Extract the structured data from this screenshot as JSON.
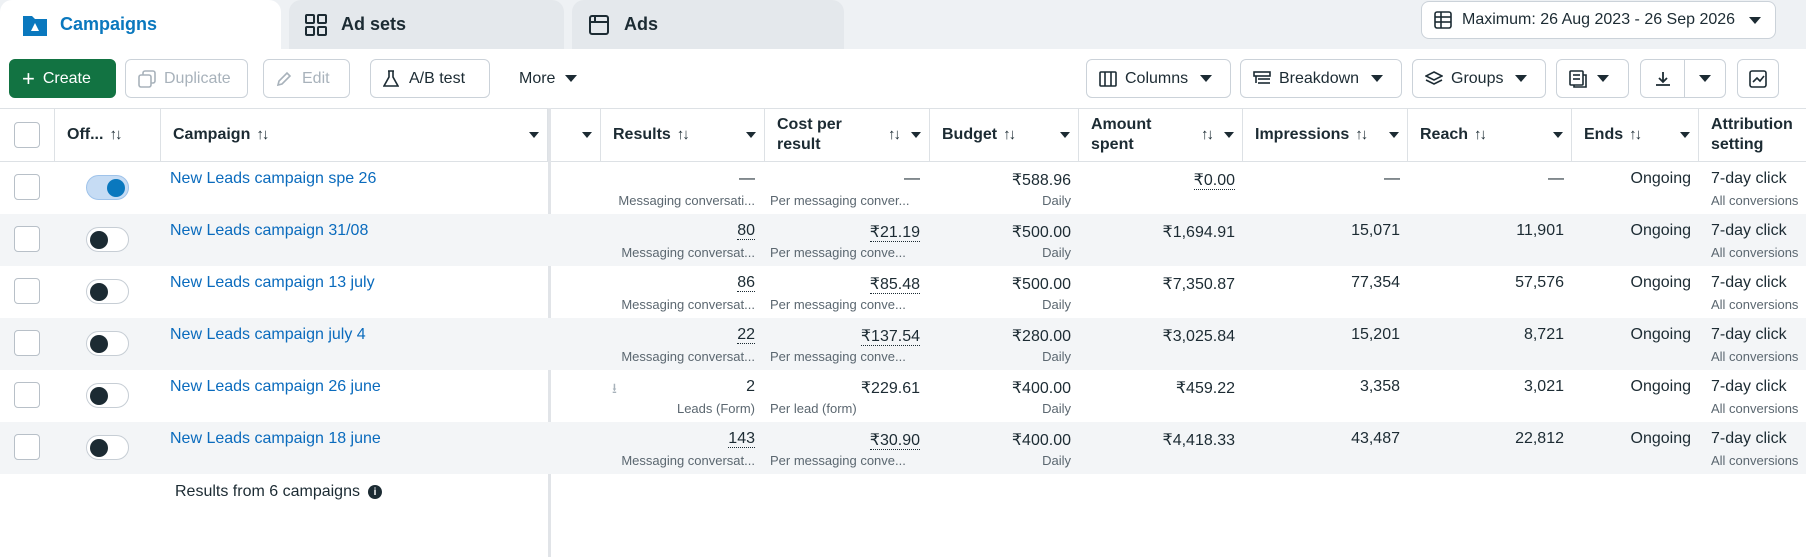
{
  "tabs": [
    {
      "label": "Campaigns",
      "icon": "folder-icon"
    },
    {
      "label": "Ad sets",
      "icon": "grid-icon"
    },
    {
      "label": "Ads",
      "icon": "ad-icon"
    }
  ],
  "date_range": "Maximum: 26 Aug 2023 - 26 Sep 2026",
  "toolbar": {
    "create": "Create",
    "duplicate": "Duplicate",
    "edit": "Edit",
    "ab_test": "A/B test",
    "more": "More",
    "columns": "Columns",
    "breakdown": "Breakdown",
    "groups": "Groups"
  },
  "columns": {
    "off": "Off...",
    "campaign": "Campaign",
    "results": "Results",
    "cost_per_result": "Cost per result",
    "budget": "Budget",
    "amount_spent": "Amount spent",
    "impressions": "Impressions",
    "reach": "Reach",
    "ends": "Ends",
    "attribution": "Attribution setting"
  },
  "rows": [
    {
      "name": "New Leads campaign spe 26",
      "on": true,
      "results": "—",
      "results_sub": "Messaging conversati...",
      "cpr": "—",
      "cpr_sub": "Per messaging conver...",
      "budget": "₹588.96",
      "budget_sub": "Daily",
      "spent": "₹0.00",
      "impressions": "—",
      "reach": "—",
      "ends": "Ongoing",
      "attr": "7-day click",
      "attr_sub": "All conversions"
    },
    {
      "name": "New Leads campaign 31/08",
      "on": false,
      "results": "80",
      "results_sub": "Messaging conversat...",
      "cpr": "₹21.19",
      "cpr_sub": "Per messaging conve...",
      "budget": "₹500.00",
      "budget_sub": "Daily",
      "spent": "₹1,694.91",
      "impressions": "15,071",
      "reach": "11,901",
      "ends": "Ongoing",
      "attr": "7-day click",
      "attr_sub": "All conversions"
    },
    {
      "name": "New Leads campaign 13 july",
      "on": false,
      "results": "86",
      "results_sub": "Messaging conversat...",
      "cpr": "₹85.48",
      "cpr_sub": "Per messaging conve...",
      "budget": "₹500.00",
      "budget_sub": "Daily",
      "spent": "₹7,350.87",
      "impressions": "77,354",
      "reach": "57,576",
      "ends": "Ongoing",
      "attr": "7-day click",
      "attr_sub": "All conversions"
    },
    {
      "name": "New Leads campaign july 4",
      "on": false,
      "results": "22",
      "results_sub": "Messaging conversat...",
      "cpr": "₹137.54",
      "cpr_sub": "Per messaging conve...",
      "budget": "₹280.00",
      "budget_sub": "Daily",
      "spent": "₹3,025.84",
      "impressions": "15,201",
      "reach": "8,721",
      "ends": "Ongoing",
      "attr": "7-day click",
      "attr_sub": "All conversions"
    },
    {
      "name": "New Leads campaign 26 june",
      "on": false,
      "results": "2",
      "results_sub": "Leads (Form)",
      "cpr": "₹229.61",
      "cpr_sub": "Per lead (form)",
      "budget": "₹400.00",
      "budget_sub": "Daily",
      "spent": "₹459.22",
      "impressions": "3,358",
      "reach": "3,021",
      "ends": "Ongoing",
      "attr": "7-day click",
      "attr_sub": "All conversions"
    },
    {
      "name": "New Leads campaign 18 june",
      "on": false,
      "results": "143",
      "results_sub": "Messaging conversat...",
      "cpr": "₹30.90",
      "cpr_sub": "Per messaging conve...",
      "budget": "₹400.00",
      "budget_sub": "Daily",
      "spent": "₹4,418.33",
      "impressions": "43,487",
      "reach": "22,812",
      "ends": "Ongoing",
      "attr": "7-day click",
      "attr_sub": "All conversions"
    }
  ],
  "footer": "Results from 6 campaigns",
  "colors": {
    "accent": "#0a78be",
    "primary_button": "#127342"
  }
}
